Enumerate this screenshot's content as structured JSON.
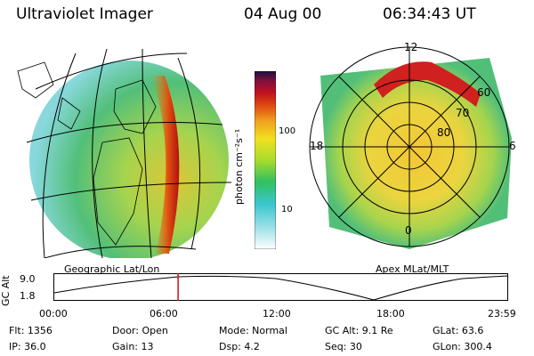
{
  "header": {
    "instrument": "Ultraviolet Imager",
    "date": "04 Aug 00",
    "time": "06:34:43 UT"
  },
  "colorbar": {
    "unit_label": "photon cm⁻²s⁻¹",
    "ticks": [
      "100",
      "10"
    ]
  },
  "left_map": {
    "caption": "Geographic Lat/Lon"
  },
  "right_map": {
    "caption": "Apex MLat/MLT",
    "mlt_labels": [
      "12",
      "18",
      "6",
      "0"
    ],
    "mlat_labels": [
      "60",
      "70",
      "80"
    ]
  },
  "timeline": {
    "ylabel": "GC Alt",
    "y_ticks": [
      "9.0",
      "1.8"
    ],
    "x_ticks": [
      "00:00",
      "06:00",
      "12:00",
      "18:00",
      "23:59"
    ],
    "current_time_hours": 6.58
  },
  "info": {
    "flt": "Flt: 1356",
    "door": "Door: Open",
    "mode": "Mode: Normal",
    "gc_alt": "GC Alt: 9.1 Re",
    "glat": "GLat:   63.6",
    "ip": "IP: 36.0",
    "gain": "Gain: 13",
    "dsp": "Dsp:      4.2",
    "seq": "Seq: 30",
    "glon": "GLon: 300.4"
  }
}
